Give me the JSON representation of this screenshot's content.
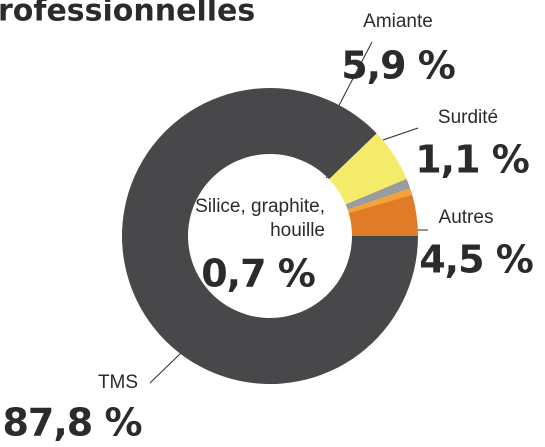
{
  "chart_data": {
    "type": "donut",
    "title": "rofessionnelles",
    "categories": [
      "Amiante",
      "Surdité",
      "Silice, graphite, houille",
      "Autres",
      "TMS"
    ],
    "values": [
      5.9,
      1.1,
      0.7,
      4.5,
      87.8
    ],
    "value_labels": [
      "5,9 %",
      "1,1 %",
      "0,7 %",
      "4,5 %",
      "87,8 %"
    ],
    "colors": [
      "#f4eb6b",
      "#9b9b9d",
      "#f3a236",
      "#e07b27",
      "#48484b"
    ]
  }
}
